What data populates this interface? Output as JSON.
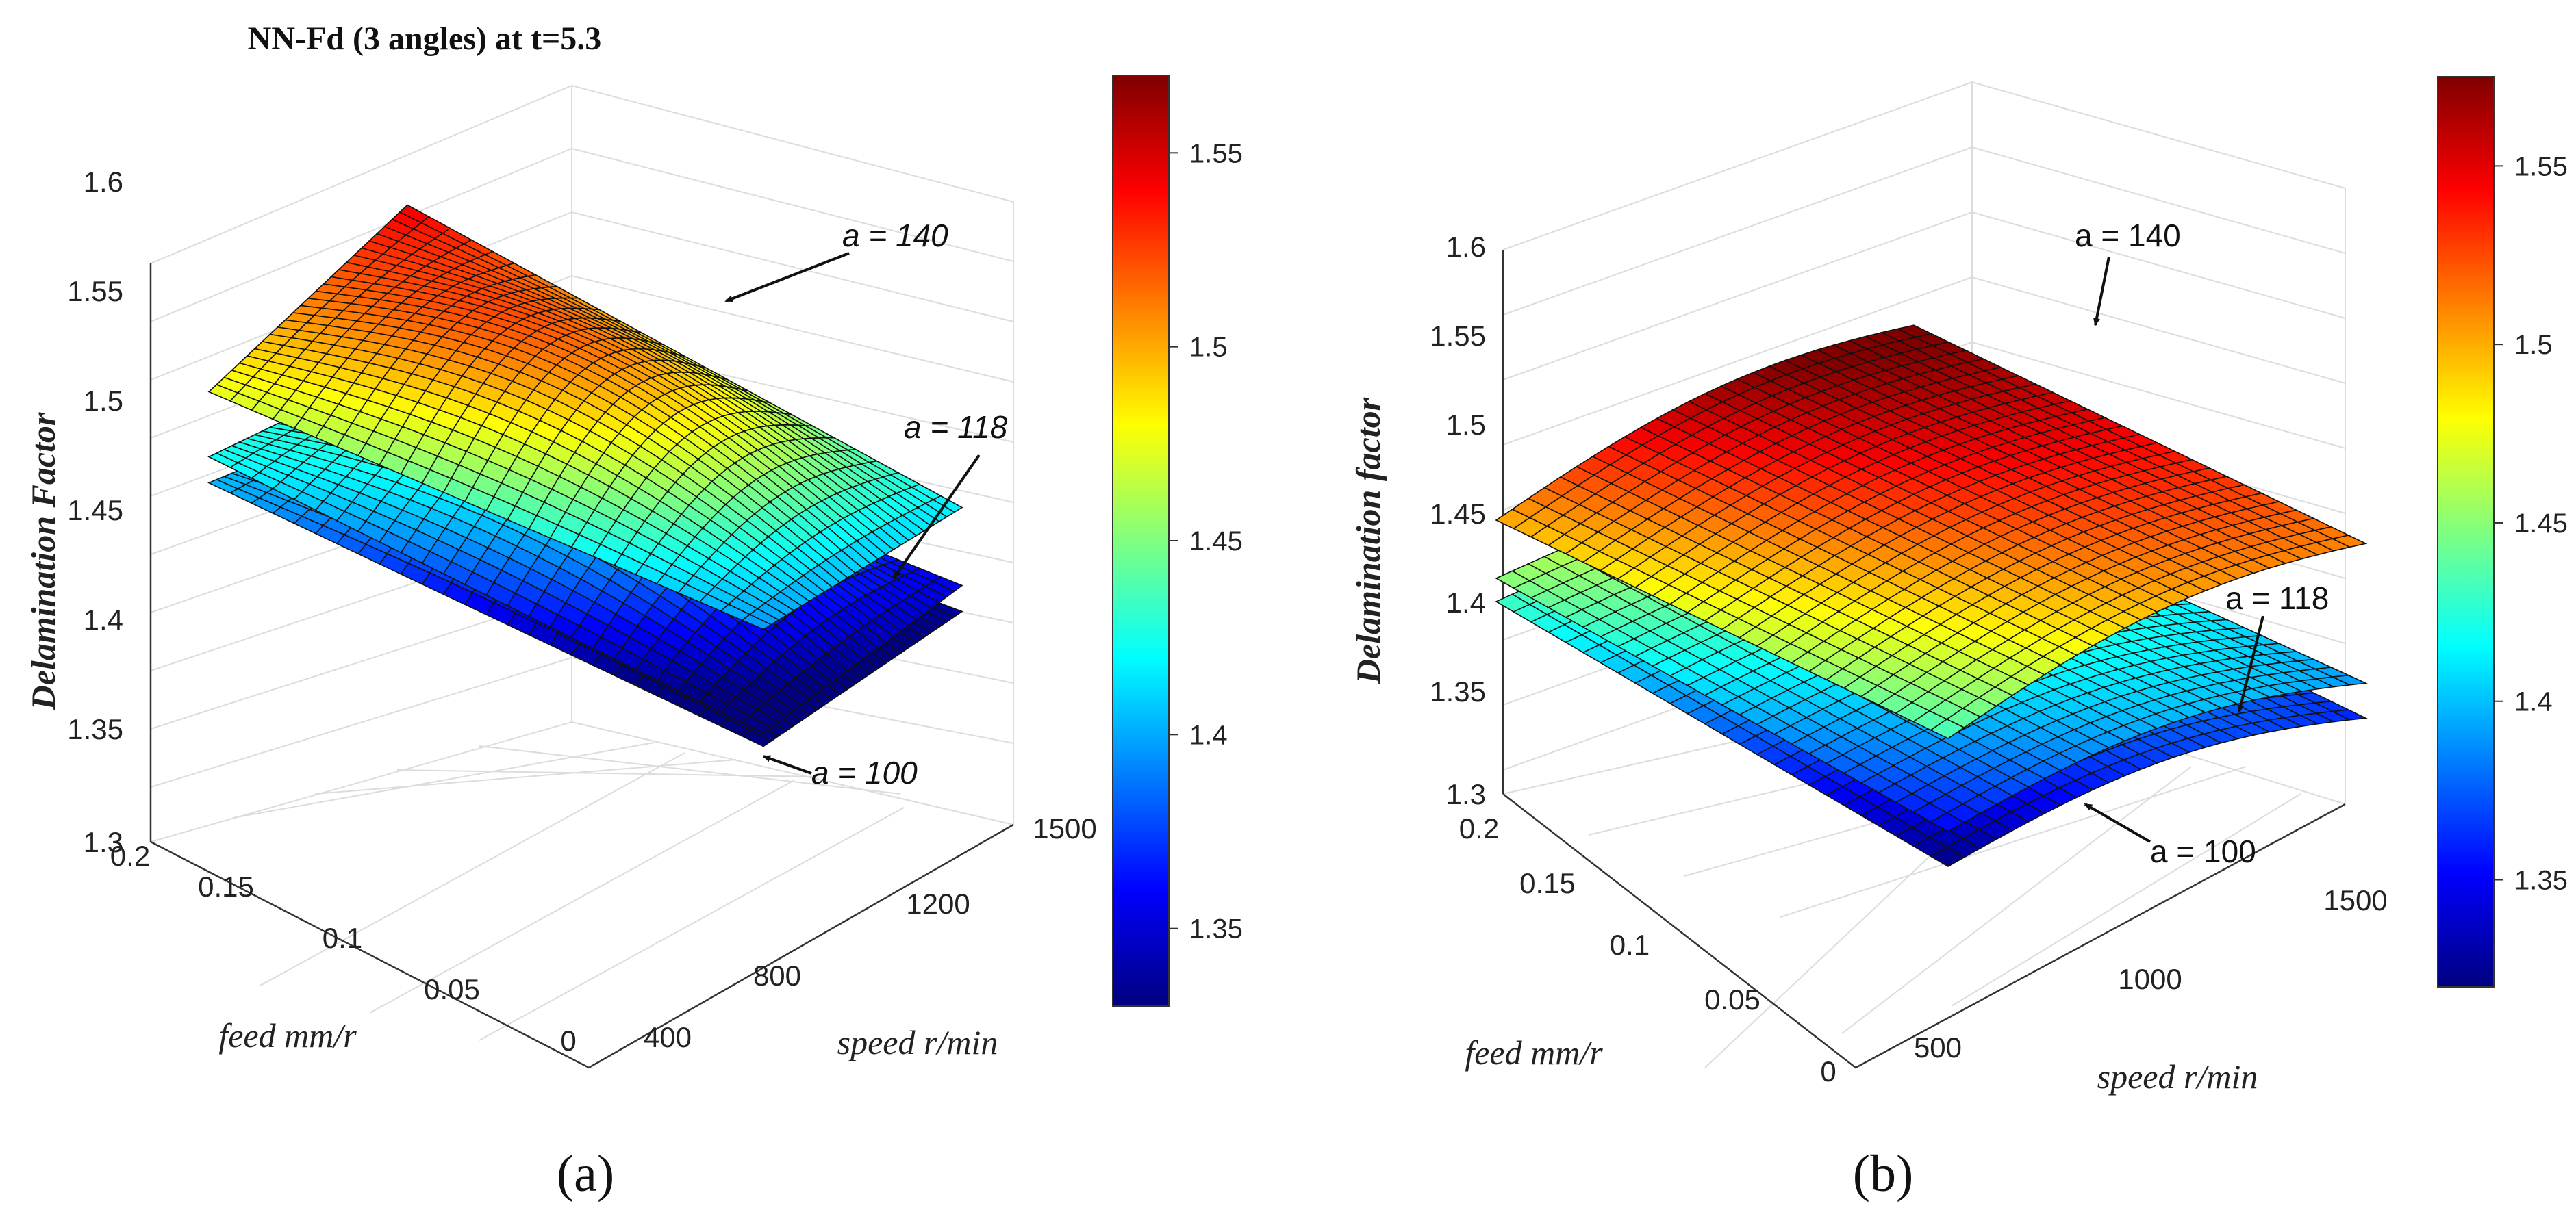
{
  "chart_data": [
    {
      "type": "surface3d",
      "panel": "a",
      "caption": "(a)",
      "title": "NN-Fd (3 angles) at t=5.3",
      "xlabel": "feed mm/r",
      "ylabel": "speed r/min",
      "zlabel": "Delamination Factor",
      "xticks": [
        "0",
        "0.05",
        "0.1",
        "0.15",
        "0.2"
      ],
      "yticks": [
        "400",
        "800",
        "1200",
        "1500"
      ],
      "zticks": [
        "1.3",
        "1.35",
        "1.4",
        "1.45",
        "1.5",
        "1.55",
        "1.6"
      ],
      "zlim": [
        1.3,
        1.6
      ],
      "colorbar": {
        "ticks": [
          "1.35",
          "1.4",
          "1.45",
          "1.5",
          "1.55"
        ],
        "range": [
          1.33,
          1.57
        ],
        "colormap": "jet"
      },
      "annotations": [
        "a = 140",
        "a = 118",
        "a = 100"
      ],
      "series": [
        {
          "name": "a = 140",
          "corners": {
            "feed0_speed400": 1.42,
            "feed02_speed400": 1.5,
            "feed0_speed1500": 1.44,
            "feed02_speed1500": 1.57
          }
        },
        {
          "name": "a = 118",
          "corners": {
            "feed0_speed400": 1.34,
            "feed02_speed400": 1.45,
            "feed0_speed1500": 1.38,
            "feed02_speed1500": 1.45
          }
        },
        {
          "name": "a = 100",
          "corners": {
            "feed0_speed400": 1.33,
            "feed02_speed400": 1.43,
            "feed0_speed1500": 1.36,
            "feed02_speed1500": 1.42
          }
        }
      ]
    },
    {
      "type": "surface3d",
      "panel": "b",
      "caption": "(b)",
      "title": "",
      "xlabel": "feed mm/r",
      "ylabel": "speed r/min",
      "zlabel": "Delamination factor",
      "xticks": [
        "0",
        "0.05",
        "0.1",
        "0.15",
        "0.2"
      ],
      "yticks": [
        "500",
        "1000",
        "1500"
      ],
      "zticks": [
        "1.3",
        "1.35",
        "1.4",
        "1.45",
        "1.5",
        "1.55",
        "1.6"
      ],
      "zlim": [
        1.3,
        1.6
      ],
      "colorbar": {
        "ticks": [
          "1.35",
          "1.4",
          "1.45",
          "1.5",
          "1.55"
        ],
        "range": [
          1.32,
          1.575
        ],
        "colormap": "jet"
      },
      "annotations": [
        "a = 140",
        "a = 118",
        "a = 100"
      ],
      "series": [
        {
          "name": "a = 140",
          "corners": {
            "feed0_speed400": 1.44,
            "feed02_speed400": 1.51,
            "feed0_speed1500": 1.51,
            "feed02_speed1500": 1.58
          }
        },
        {
          "name": "a = 118",
          "corners": {
            "feed0_speed400": 1.36,
            "feed02_speed400": 1.46,
            "feed0_speed1500": 1.39,
            "feed02_speed1500": 1.45
          }
        },
        {
          "name": "a = 100",
          "corners": {
            "feed0_speed400": 1.33,
            "feed02_speed400": 1.44,
            "feed0_speed1500": 1.36,
            "feed02_speed1500": 1.43
          }
        }
      ]
    }
  ]
}
